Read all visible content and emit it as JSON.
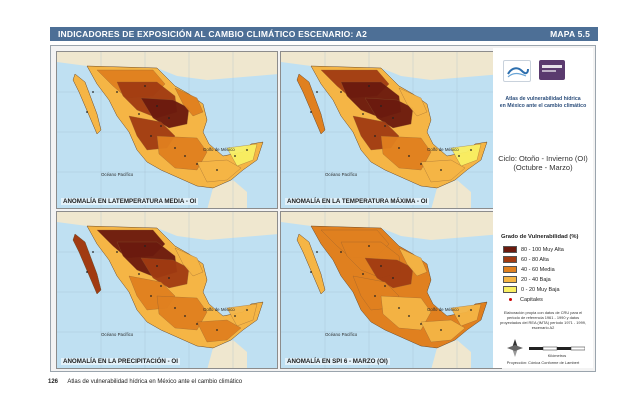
{
  "header": {
    "title": "INDICADORES DE EXPOSICIÓN AL CAMBIO CLIMÁTICO ESCENARIO: A2",
    "map_no": "MAPA 5.5"
  },
  "panels": [
    {
      "title": "ANOMALÍA EN LATEMPERATURA MEDIA - OI",
      "theme": "temp_media"
    },
    {
      "title": "ANOMALÍA EN LA TEMPERATURA MÁXIMA - OI",
      "theme": "temp_max"
    },
    {
      "title": "ANOMALÍA EN LA PRECIPITACIÓN - OI",
      "theme": "precip"
    },
    {
      "title": "ANOMALÍA EN SPI 6 - MARZO (OI)",
      "theme": "spi"
    }
  ],
  "map_labels": {
    "gulf": "Golfo de México",
    "pacific": "Océano Pacífico"
  },
  "sidebar": {
    "atlas_title_1": "Atlas de vulnerabilidad hídrica",
    "atlas_title_2": "en México ante el cambio climático",
    "cycle_1": "Ciclo: Otoño - Invierno (OI)",
    "cycle_2": "(Octubre - Marzo)",
    "legend_title": "Grado de Vulnerabilidad (%)",
    "legend": [
      {
        "label": "80 - 100 Muy Alta",
        "color": "#6b1a0e"
      },
      {
        "label": "60 - 80  Alta",
        "color": "#a13b12"
      },
      {
        "label": "40 - 60  Media",
        "color": "#e0801f"
      },
      {
        "label": "20 - 40  Baja",
        "color": "#f5b545"
      },
      {
        "label": "0 - 20  Muy Baja",
        "color": "#f9ef63"
      }
    ],
    "capitals_label": "Capitales",
    "note": "Elaboración propia con datos de CRU para el periodo de referencia 1961 - 1990 y datos proyectados del REA (IMTA) periodo 1971 - 1999, escenario A2",
    "scale_label": "Kilómetros",
    "projection": "Proyección: Cónica Conforme de Lambert"
  },
  "footer": {
    "page": "126",
    "text": "Atlas de vulnerabilidad hídrica en México ante el cambio climático"
  },
  "colors": {
    "header_bg": "#4d6f96",
    "sea": "#bfe0f2",
    "land_outside": "#efe7cf"
  }
}
